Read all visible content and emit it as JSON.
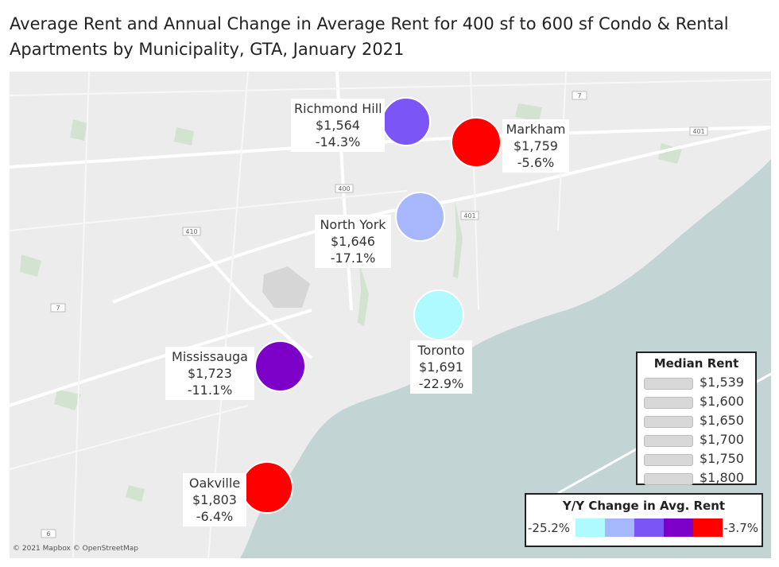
{
  "title": "Average Rent and Annual Change in Average Rent for 400 sf to 600 sf Condo & Rental Apartments by Municipality, GTA, January 2021",
  "map": {
    "land_color": "#ececec",
    "water_color": "#c3d4d4",
    "park_color": "#cfe3cf",
    "attribution": "© 2021 Mapbox © OpenStreetMap",
    "highway_shields": [
      "7",
      "401",
      "400",
      "410",
      "401",
      "7",
      "6"
    ]
  },
  "cities": [
    {
      "name": "Richmond Hill",
      "rent": "$1,564",
      "change": "-14.3%",
      "color": "#7b55f5"
    },
    {
      "name": "Markham",
      "rent": "$1,759",
      "change": "-5.6%",
      "color": "#ff0000"
    },
    {
      "name": "North York",
      "rent": "$1,646",
      "change": "-17.1%",
      "color": "#a7b7fb"
    },
    {
      "name": "Toronto",
      "rent": "$1,691",
      "change": "-22.9%",
      "color": "#aefaff"
    },
    {
      "name": "Mississauga",
      "rent": "$1,723",
      "change": "-11.1%",
      "color": "#7c00c8"
    },
    {
      "name": "Oakville",
      "rent": "$1,803",
      "change": "-6.4%",
      "color": "#ff0000"
    }
  ],
  "legend_rent": {
    "title": "Median Rent",
    "items": [
      "$1,539",
      "$1,600",
      "$1,650",
      "$1,700",
      "$1,750",
      "$1,800"
    ]
  },
  "legend_change": {
    "title": "Y/Y Change in Avg. Rent",
    "min": "-25.2%",
    "max": "-3.7%",
    "colors": [
      "#aefaff",
      "#a7b7fb",
      "#7b55f5",
      "#7c00c8",
      "#ff0000"
    ]
  }
}
